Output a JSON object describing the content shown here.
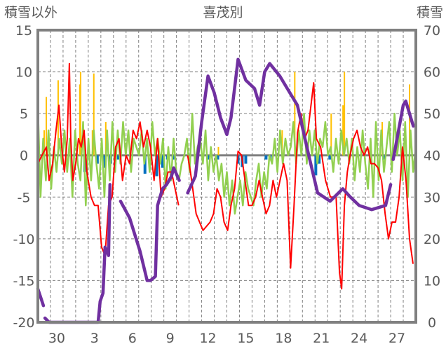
{
  "chart_data": {
    "type": "line",
    "title": "喜茂別",
    "ylabel_left": "積雪以外",
    "ylabel_right": "積雪",
    "ylim_left": [
      -20,
      15
    ],
    "ylim_right": [
      0,
      70
    ],
    "yticks_left": [
      15,
      10,
      5,
      0,
      -5,
      -10,
      -15,
      -20
    ],
    "yticks_right": [
      70,
      60,
      50,
      40,
      30,
      20,
      10,
      0
    ],
    "xlim_days": [
      0,
      30
    ],
    "xtick_labels": [
      {
        "label": "30",
        "day": 1.5
      },
      {
        "label": "3",
        "day": 4.5
      },
      {
        "label": "6",
        "day": 7.5
      },
      {
        "label": "9",
        "day": 10.5
      },
      {
        "label": "12",
        "day": 13.5
      },
      {
        "label": "15",
        "day": 16.5
      },
      {
        "label": "18",
        "day": 19.5
      },
      {
        "label": "21",
        "day": 22.5
      },
      {
        "label": "24",
        "day": 25.5
      },
      {
        "label": "27",
        "day": 28.5
      }
    ],
    "grid": true,
    "colors": {
      "red": "#ff0000",
      "green": "#92d050",
      "purple": "#7030a0",
      "orange": "#ffc000",
      "blue": "#0070c0",
      "frame": "#808080",
      "grid": "#808080"
    },
    "series_red": [
      [
        0,
        -1
      ],
      [
        0.33,
        0
      ],
      [
        0.67,
        1
      ],
      [
        0.89,
        -3
      ],
      [
        1.17,
        -1
      ],
      [
        1.44,
        3
      ],
      [
        1.67,
        6
      ],
      [
        1.89,
        1
      ],
      [
        2.11,
        -2
      ],
      [
        2.33,
        2
      ],
      [
        2.5,
        11
      ],
      [
        2.61,
        2
      ],
      [
        2.78,
        -3
      ],
      [
        3,
        -1
      ],
      [
        3.22,
        2
      ],
      [
        3.44,
        1
      ],
      [
        3.67,
        3
      ],
      [
        3.89,
        -2
      ],
      [
        4.22,
        -5
      ],
      [
        4.5,
        -6
      ],
      [
        4.78,
        -6
      ],
      [
        5.06,
        -11
      ],
      [
        5.33,
        -12
      ],
      [
        5.61,
        -6
      ],
      [
        5.89,
        -5
      ],
      [
        6.17,
        1
      ],
      [
        6.44,
        2
      ],
      [
        6.72,
        -3
      ],
      [
        7,
        0
      ],
      [
        7.28,
        -1
      ],
      [
        7.56,
        3
      ],
      [
        7.83,
        2
      ],
      [
        8.11,
        4
      ],
      [
        8.39,
        1
      ],
      [
        8.67,
        3
      ],
      [
        8.94,
        1
      ],
      [
        9.22,
        -3
      ],
      [
        9.5,
        2
      ],
      [
        9.78,
        -5
      ],
      [
        10.06,
        -4
      ],
      [
        10.33,
        -2
      ],
      [
        10.61,
        -2
      ],
      [
        10.89,
        -4
      ],
      [
        11.17,
        -6
      ],
      null,
      [
        11.89,
        0
      ],
      [
        12.11,
        -2
      ],
      [
        12.56,
        -7
      ],
      [
        13.11,
        -9
      ],
      [
        13.67,
        -8
      ],
      [
        13.94,
        -7
      ],
      [
        14.22,
        -4
      ],
      [
        14.5,
        -5
      ],
      [
        14.78,
        -8
      ],
      [
        15.06,
        -9
      ],
      [
        15.33,
        -6
      ],
      [
        15.61,
        -4
      ],
      [
        15.89,
        0.5
      ],
      [
        16.17,
        0
      ],
      [
        16.44,
        -3
      ],
      [
        16.72,
        -6
      ],
      [
        17,
        -6
      ],
      [
        17.28,
        -5
      ],
      [
        17.56,
        -3
      ],
      [
        17.83,
        -5
      ],
      [
        18.11,
        -7
      ],
      [
        18.39,
        -6
      ],
      [
        18.67,
        -3
      ],
      [
        18.94,
        -5
      ],
      [
        19.22,
        -3
      ],
      [
        19.5,
        -1
      ],
      [
        19.78,
        -3
      ],
      [
        20.06,
        -13.5
      ],
      [
        20.33,
        -6
      ],
      [
        20.61,
        2.7
      ],
      [
        20.89,
        5
      ],
      [
        21.17,
        2
      ],
      [
        21.44,
        3
      ],
      [
        21.89,
        8.7
      ],
      [
        22.11,
        2
      ],
      [
        22.44,
        1
      ],
      [
        22.83,
        -3
      ],
      [
        23.22,
        -5
      ],
      [
        23.67,
        -5
      ],
      [
        23.94,
        -14
      ],
      [
        24.11,
        -16
      ],
      [
        24.33,
        -6
      ],
      [
        24.56,
        -2
      ],
      [
        24.78,
        0
      ],
      [
        25.06,
        2
      ],
      [
        25.33,
        3
      ],
      [
        25.61,
        1
      ],
      [
        25.89,
        0
      ],
      [
        26.17,
        1
      ],
      [
        26.44,
        -1
      ],
      [
        26.72,
        -1
      ],
      [
        27,
        -1.5
      ],
      [
        27.28,
        -3
      ],
      [
        27.56,
        -7
      ],
      [
        27.83,
        -10
      ],
      [
        28.11,
        -8
      ],
      [
        28.39,
        -8
      ],
      [
        28.67,
        -5
      ],
      [
        28.94,
        1
      ],
      [
        29.22,
        -3
      ],
      [
        29.5,
        -10
      ],
      [
        29.78,
        -13
      ]
    ],
    "series_green": [
      6,
      -5,
      2,
      -3,
      3,
      -4,
      1,
      -2,
      2,
      -1,
      3,
      -2,
      2,
      -5,
      3,
      -1,
      -3,
      4,
      -6,
      2,
      -3,
      3,
      -1,
      -4,
      2,
      -5,
      3,
      -3,
      4,
      -2,
      3,
      -1,
      4,
      0,
      3,
      -2,
      2,
      1,
      0,
      3,
      -1,
      2,
      -2,
      4,
      0,
      2,
      -1,
      2,
      -4,
      1,
      -3,
      2,
      -2,
      -3,
      -1,
      0,
      2,
      -2,
      5,
      -1,
      1,
      2,
      -1,
      3,
      -3,
      1,
      -2,
      0,
      -3,
      -1,
      -5,
      -2,
      -6,
      -3,
      -7,
      -5,
      -3,
      -6,
      -2,
      -4,
      -5,
      -6,
      -3,
      -1,
      -5,
      -2,
      -4,
      0,
      -1,
      2,
      -2,
      3,
      -1,
      2,
      0,
      1,
      4,
      -1,
      3,
      0,
      5,
      -1,
      3,
      0,
      3,
      -1,
      2,
      1,
      4,
      0,
      1,
      -2,
      2,
      -1,
      3,
      0,
      2,
      -1,
      2,
      -3,
      1,
      -2,
      3,
      -1,
      -4,
      2,
      -5,
      4,
      -3,
      3,
      -2,
      1,
      4,
      -2,
      5,
      0,
      3,
      -3,
      4,
      -5,
      3,
      -2,
      1
    ],
    "series_purple_right_axis": [
      [
        0,
        8
      ],
      [
        0.22,
        6
      ],
      [
        0.44,
        4
      ],
      null,
      [
        0.56,
        1
      ],
      [
        0.89,
        0
      ],
      [
        4.78,
        0
      ],
      [
        4.94,
        5
      ],
      [
        5.17,
        7
      ],
      [
        5.33,
        18
      ],
      [
        5.61,
        16
      ],
      [
        5.72,
        33
      ],
      null,
      [
        6.56,
        29
      ],
      [
        7.28,
        25
      ],
      [
        8.11,
        17
      ],
      [
        8.67,
        10
      ],
      [
        8.94,
        10
      ],
      [
        9.33,
        11
      ],
      [
        9.5,
        28
      ],
      [
        9.89,
        32
      ],
      [
        10.22,
        33
      ],
      [
        10.61,
        35
      ],
      [
        10.78,
        37
      ],
      [
        11.22,
        34
      ],
      null,
      [
        11.89,
        31
      ],
      [
        12.5,
        35
      ],
      [
        13.0,
        48
      ],
      [
        13.5,
        59
      ],
      [
        14.0,
        55
      ],
      [
        14.5,
        49
      ],
      [
        15.0,
        45
      ],
      [
        15.33,
        49
      ],
      [
        15.89,
        63
      ],
      [
        16.5,
        58
      ],
      [
        17.2,
        56
      ],
      [
        17.6,
        52
      ],
      [
        18.0,
        60
      ],
      [
        18.4,
        62
      ],
      [
        19.2,
        59
      ],
      [
        20.0,
        55
      ],
      [
        20.6,
        52
      ],
      [
        21.5,
        40
      ],
      [
        22.2,
        31
      ],
      [
        23.2,
        29
      ],
      [
        24.2,
        32
      ],
      [
        24.8,
        30
      ],
      [
        25.5,
        28
      ],
      [
        26.5,
        27
      ],
      [
        27.6,
        28
      ],
      [
        28.0,
        33
      ],
      null,
      [
        28.2,
        39
      ],
      [
        29.0,
        52
      ],
      [
        29.2,
        53
      ],
      [
        29.4,
        51
      ],
      [
        29.8,
        47
      ]
    ],
    "bars_orange": [
      [
        0.5,
        3
      ],
      [
        0.67,
        7
      ],
      [
        1.61,
        9
      ],
      [
        3.33,
        8.5
      ],
      [
        3.39,
        10
      ],
      [
        4.33,
        3
      ],
      [
        4.44,
        9.8
      ],
      [
        5.39,
        4
      ],
      [
        14.33,
        1
      ],
      [
        19.39,
        3
      ],
      [
        20.39,
        10
      ],
      [
        23.28,
        5
      ],
      [
        24.22,
        6
      ],
      [
        24.33,
        10
      ],
      [
        27.33,
        4
      ],
      [
        29.5,
        8.5
      ]
    ],
    "bars_blue": [
      [
        3.72,
        -2
      ],
      [
        4.72,
        -1
      ],
      [
        5.22,
        -1.5
      ],
      [
        5.78,
        -1
      ],
      [
        6.39,
        -0.5
      ],
      [
        8.5,
        -2.2
      ],
      [
        9.44,
        -2.5
      ],
      [
        9.89,
        -1.5
      ],
      [
        10.28,
        -0.5
      ],
      [
        10.72,
        -0.5
      ],
      [
        12.61,
        -0.5
      ],
      [
        13.61,
        -0.5
      ],
      [
        14.28,
        -0.5
      ],
      [
        15.89,
        -1
      ],
      [
        16.22,
        -1.4
      ],
      [
        16.5,
        -1
      ],
      [
        18.11,
        -0.5
      ],
      [
        18.44,
        -0.5
      ],
      [
        22.06,
        -2.4
      ],
      [
        22.33,
        -1
      ],
      [
        23.17,
        -0.5
      ],
      [
        27.44,
        -0.5
      ]
    ]
  }
}
